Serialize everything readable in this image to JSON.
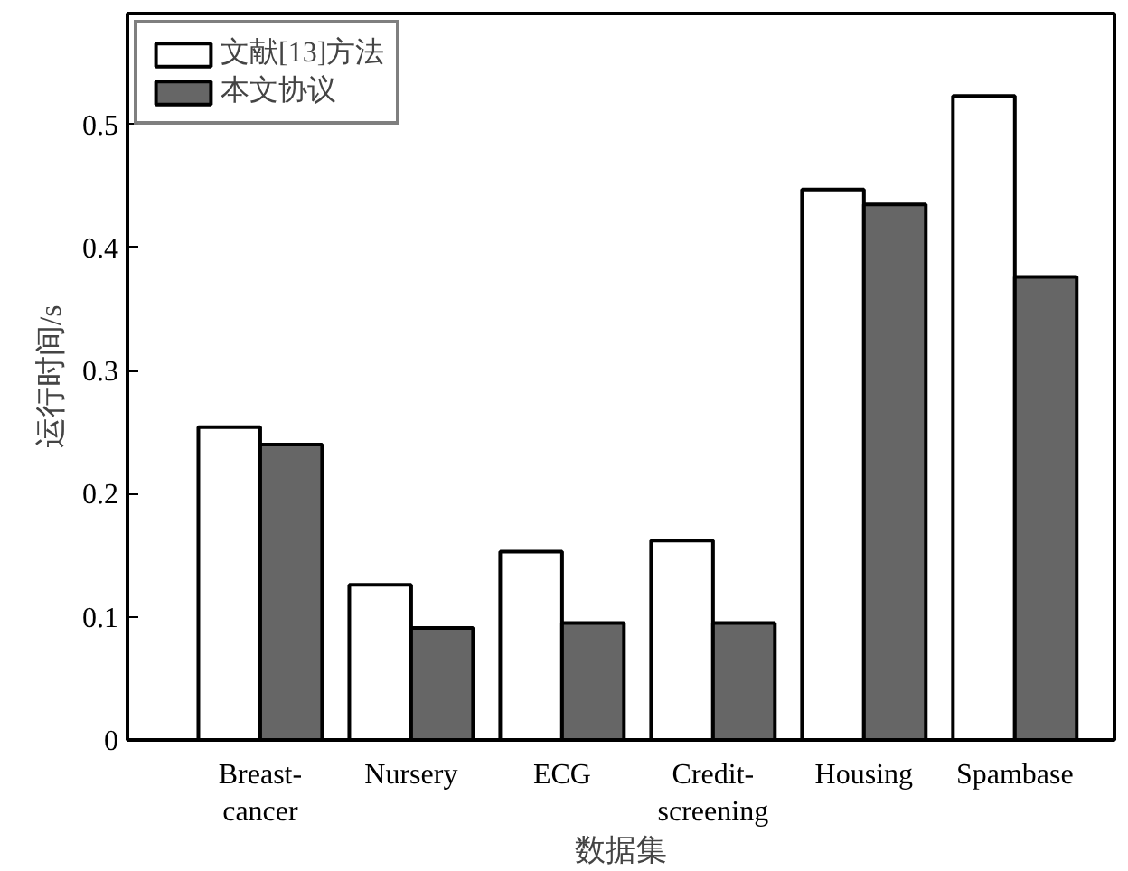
{
  "chart_data": {
    "type": "bar",
    "xlabel": "数据集",
    "ylabel": "运行时间/s",
    "categories": [
      "Breast-\ncancer",
      "Nursery",
      "ECG",
      "Credit-\nscreening",
      "Housing",
      "Spambase"
    ],
    "series": [
      {
        "name": "文献[13]方法",
        "color": "#ffffff",
        "values": [
          0.254,
          0.126,
          0.153,
          0.162,
          0.447,
          0.523
        ]
      },
      {
        "name": "本文协议",
        "color": "#666666",
        "values": [
          0.24,
          0.091,
          0.095,
          0.095,
          0.435,
          0.376
        ]
      }
    ],
    "ylim": [
      0,
      0.59
    ],
    "yticks": [
      0,
      0.1,
      0.2,
      0.3,
      0.4,
      0.5
    ],
    "grid": false,
    "legend": "top left"
  }
}
